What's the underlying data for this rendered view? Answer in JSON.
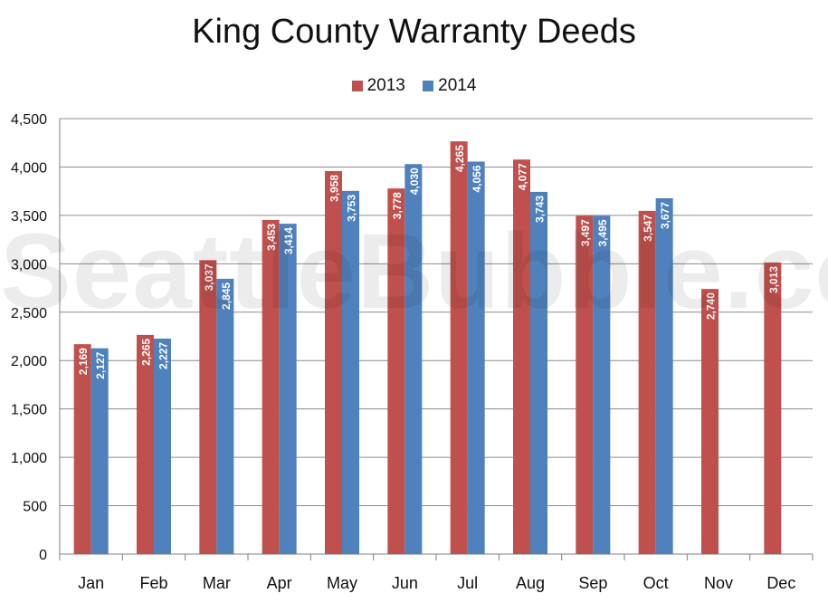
{
  "chart_data": {
    "type": "bar",
    "title": "King County Warranty Deeds",
    "xlabel": "",
    "ylabel": "",
    "categories": [
      "Jan",
      "Feb",
      "Mar",
      "Apr",
      "May",
      "Jun",
      "Jul",
      "Aug",
      "Sep",
      "Oct",
      "Nov",
      "Dec"
    ],
    "series": [
      {
        "name": "2013",
        "color": "#c0504d",
        "values": [
          2169,
          2265,
          3037,
          3453,
          3958,
          3778,
          4265,
          4077,
          3497,
          3547,
          2740,
          3013
        ]
      },
      {
        "name": "2014",
        "color": "#4f81bd",
        "values": [
          2127,
          2227,
          2845,
          3414,
          3753,
          4030,
          4056,
          3743,
          3495,
          3677,
          null,
          null
        ]
      }
    ],
    "data_labels": {
      "2013": [
        "2,169",
        "2,265",
        "3,037",
        "3,453",
        "3,958",
        "3,778",
        "4,265",
        "4,077",
        "3,497",
        "3,547",
        "2,740",
        "3,013"
      ],
      "2014": [
        "2,127",
        "2,227",
        "2,845",
        "3,414",
        "3,753",
        "4,030",
        "4,056",
        "3,743",
        "3,495",
        "3,677",
        "",
        ""
      ]
    },
    "ylim": [
      0,
      4500
    ],
    "yticks": [
      0,
      500,
      1000,
      1500,
      2000,
      2500,
      3000,
      3500,
      4000,
      4500
    ],
    "ytick_labels": [
      "0",
      "500",
      "1,000",
      "1,500",
      "2,000",
      "2,500",
      "3,000",
      "3,500",
      "4,000",
      "4,500"
    ],
    "grid": true,
    "legend_position": "top-center"
  },
  "watermark": "SeattleBubble.com"
}
